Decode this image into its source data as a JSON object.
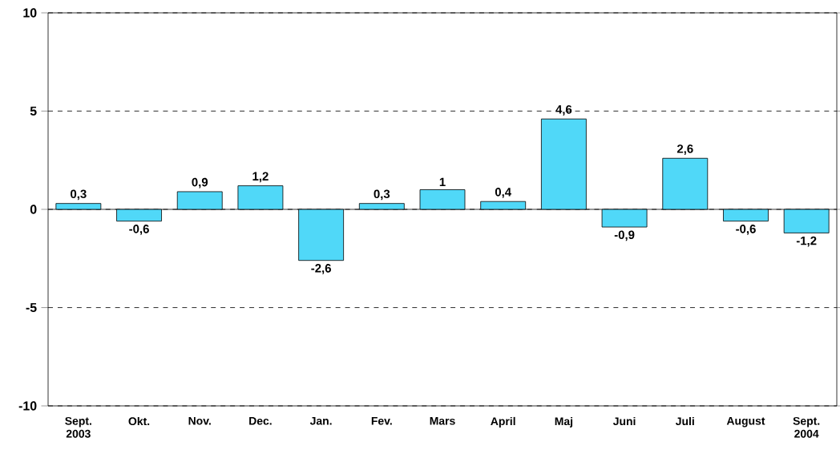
{
  "chart_data": {
    "type": "bar",
    "categories": [
      "Sept. 2003",
      "Okt.",
      "Nov.",
      "Dec.",
      "Jan.",
      "Fev.",
      "Mars",
      "April",
      "Maj",
      "Juni",
      "Juli",
      "August",
      "Sept. 2004"
    ],
    "values": [
      0.3,
      -0.6,
      0.9,
      1.2,
      -2.6,
      0.3,
      1,
      0.4,
      4.6,
      -0.9,
      2.6,
      -0.6,
      -1.2
    ],
    "value_labels": [
      "0,3",
      "-0,6",
      "0,9",
      "1,2",
      "-2,6",
      "0,3",
      "1",
      "0,4",
      "4,6",
      "-0,9",
      "2,6",
      "-0,6",
      "-1,2"
    ],
    "color": "#50d8f8",
    "ylim": [
      -10,
      10
    ],
    "yticks": [
      -10,
      -5,
      0,
      5,
      10
    ],
    "grid": "y"
  }
}
